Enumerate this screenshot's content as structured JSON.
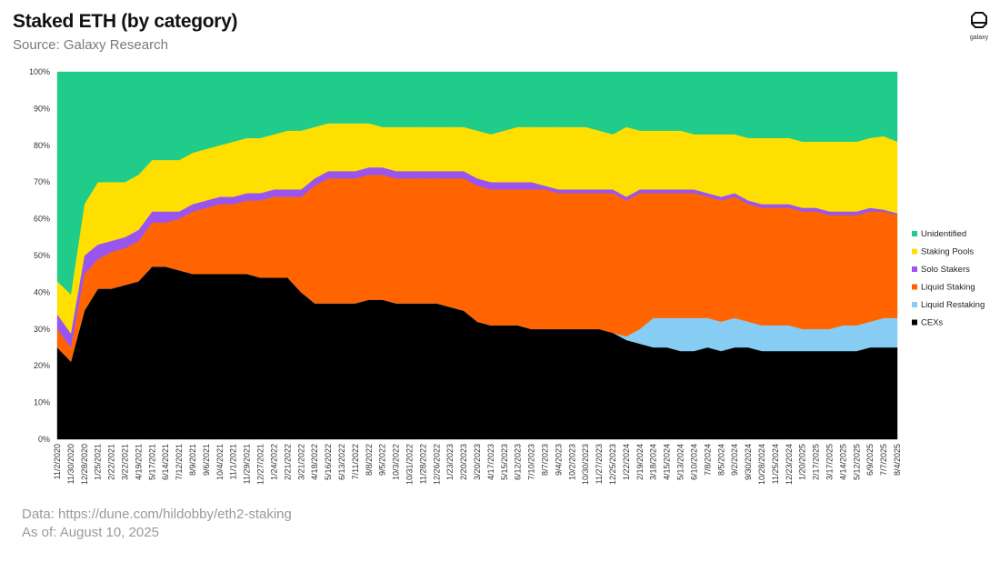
{
  "header": {
    "title": "Staked ETH (by category)",
    "subtitle": "Source: Galaxy Research"
  },
  "logo": {
    "label": "galaxy",
    "icon": "galaxy-logo-icon"
  },
  "footer": {
    "data_source": "Data: https://dune.com/hildobby/eth2-staking",
    "as_of": "As of: August 10, 2025"
  },
  "chart_data": {
    "type": "area",
    "stacked": true,
    "normalized": true,
    "ylim": [
      0,
      100
    ],
    "y_ticks": [
      "0%",
      "10%",
      "20%",
      "30%",
      "40%",
      "50%",
      "60%",
      "70%",
      "80%",
      "90%",
      "100%"
    ],
    "x_tick_labels": [
      "11/2/2020",
      "11/30/2020",
      "12/28/2020",
      "1/25/2021",
      "2/22/2021",
      "3/22/2021",
      "4/19/2021",
      "5/17/2021",
      "6/14/2021",
      "7/12/2021",
      "8/9/2021",
      "9/6/2021",
      "10/4/2021",
      "11/1/2021",
      "11/29/2021",
      "12/27/2021",
      "1/24/2022",
      "2/21/2022",
      "3/21/2022",
      "4/18/2022",
      "5/16/2022",
      "6/13/2022",
      "7/11/2022",
      "8/8/2022",
      "9/5/2022",
      "10/3/2022",
      "10/31/2022",
      "11/28/2022",
      "12/26/2022",
      "1/23/2023",
      "2/20/2023",
      "3/20/2023",
      "4/17/2023",
      "5/15/2023",
      "6/12/2023",
      "7/10/2023",
      "8/7/2023",
      "9/4/2023",
      "10/2/2023",
      "10/30/2023",
      "11/27/2023",
      "12/25/2023",
      "1/22/2024",
      "2/19/2024",
      "3/18/2024",
      "4/15/2024",
      "5/13/2024",
      "6/10/2024",
      "7/8/2024",
      "8/5/2024",
      "9/2/2024",
      "9/30/2024",
      "10/28/2024",
      "11/25/2024",
      "12/23/2024",
      "1/20/2025",
      "2/17/2025",
      "3/17/2025",
      "4/14/2025",
      "5/12/2025",
      "6/9/2025",
      "7/7/2025",
      "8/4/2025"
    ],
    "legend_position": "right",
    "grid": false,
    "x": [
      "11/2/2020",
      "11/30/2020",
      "12/28/2020",
      "1/25/2021",
      "2/22/2021",
      "3/22/2021",
      "4/19/2021",
      "5/17/2021",
      "6/14/2021",
      "7/12/2021",
      "8/9/2021",
      "9/6/2021",
      "10/4/2021",
      "11/1/2021",
      "11/29/2021",
      "12/27/2021",
      "1/24/2022",
      "2/21/2022",
      "3/21/2022",
      "4/18/2022",
      "5/16/2022",
      "6/13/2022",
      "7/11/2022",
      "8/8/2022",
      "9/5/2022",
      "10/3/2022",
      "10/31/2022",
      "11/28/2022",
      "12/26/2022",
      "1/23/2023",
      "2/20/2023",
      "3/20/2023",
      "4/17/2023",
      "5/15/2023",
      "6/12/2023",
      "7/10/2023",
      "8/7/2023",
      "9/4/2023",
      "10/2/2023",
      "10/30/2023",
      "11/27/2023",
      "12/25/2023",
      "1/22/2024",
      "2/19/2024",
      "3/18/2024",
      "4/15/2024",
      "5/13/2024",
      "6/10/2024",
      "7/8/2024",
      "8/5/2024",
      "9/2/2024",
      "9/30/2024",
      "10/28/2024",
      "11/25/2024",
      "12/23/2024",
      "1/20/2025",
      "2/17/2025",
      "3/17/2025",
      "4/14/2025",
      "5/12/2025",
      "6/9/2025",
      "7/7/2025",
      "8/4/2025"
    ],
    "series": [
      {
        "name": "CEXs",
        "color": "#000000",
        "values": [
          25,
          22,
          35,
          41,
          41,
          42,
          43,
          47,
          47,
          46,
          45,
          45,
          45,
          45,
          45,
          44,
          44,
          44,
          40,
          37,
          37,
          37,
          37,
          38,
          38,
          37,
          37,
          37,
          37,
          36,
          35,
          32,
          31,
          31,
          31,
          30,
          30,
          30,
          30,
          30,
          30,
          29,
          27,
          26,
          25,
          25,
          24,
          24,
          25,
          24,
          25,
          25,
          24,
          24,
          24,
          24,
          24,
          24,
          24,
          24,
          25,
          25,
          25
        ]
      },
      {
        "name": "Liquid Restaking",
        "color": "#87ccf2",
        "values": [
          0,
          0,
          0,
          0,
          0,
          0,
          0,
          0,
          0,
          0,
          0,
          0,
          0,
          0,
          0,
          0,
          0,
          0,
          0,
          0,
          0,
          0,
          0,
          0,
          0,
          0,
          0,
          0,
          0,
          0,
          0,
          0,
          0,
          0,
          0,
          0,
          0,
          0,
          0,
          0,
          0,
          0,
          1,
          4,
          8,
          8,
          9,
          9,
          8,
          8,
          8,
          7,
          7,
          7,
          7,
          6,
          6,
          6,
          7,
          7,
          7,
          8,
          8
        ]
      },
      {
        "name": "Liquid Staking",
        "color": "#ff6400",
        "values": [
          5,
          4,
          10,
          8,
          10,
          10,
          11,
          12,
          12,
          14,
          17,
          18,
          19,
          19,
          20,
          21,
          22,
          22,
          26,
          32,
          34,
          34,
          34,
          34,
          34,
          34,
          34,
          34,
          34,
          35,
          36,
          37,
          37,
          37,
          37,
          38,
          38,
          37,
          37,
          37,
          37,
          38,
          37,
          37,
          34,
          34,
          34,
          34,
          33,
          33,
          33,
          32,
          32,
          32,
          32,
          32,
          32,
          31,
          30,
          30,
          30,
          29,
          28
        ]
      },
      {
        "name": "Solo Stakers",
        "color": "#9955ee",
        "values": [
          4,
          4,
          5,
          4,
          3,
          3,
          3,
          3,
          3,
          2,
          2,
          2,
          2,
          2,
          2,
          2,
          2,
          2,
          2,
          2,
          2,
          2,
          2,
          2,
          2,
          2,
          2,
          2,
          2,
          2,
          2,
          2,
          2,
          2,
          2,
          2,
          1,
          1,
          1,
          1,
          1,
          1,
          1,
          1,
          1,
          1,
          1,
          1,
          1,
          1,
          1,
          1,
          1,
          1,
          1,
          1,
          1,
          1,
          1,
          1,
          1,
          0.5,
          0.5
        ]
      },
      {
        "name": "Staking Pools",
        "color": "#ffdf00",
        "values": [
          9,
          11,
          14,
          17,
          16,
          15,
          15,
          14,
          14,
          14,
          14,
          14,
          14,
          15,
          15,
          15,
          15,
          16,
          16,
          14,
          13,
          13,
          13,
          12,
          11,
          12,
          12,
          12,
          12,
          12,
          12,
          13,
          13,
          14,
          15,
          15,
          16,
          17,
          17,
          17,
          16,
          15,
          19,
          16,
          16,
          16,
          16,
          15,
          16,
          17,
          16,
          17,
          18,
          18,
          18,
          18,
          18,
          19,
          19,
          19,
          19,
          20,
          19.5
        ]
      },
      {
        "name": "Unidentified",
        "color": "#1fcc8a",
        "values": [
          57,
          63,
          36,
          30,
          30,
          30,
          28,
          24,
          24,
          24,
          22,
          21,
          20,
          19,
          18,
          18,
          17,
          16,
          16,
          15,
          14,
          14,
          14,
          14,
          15,
          15,
          15,
          15,
          15,
          15,
          15,
          16,
          17,
          16,
          15,
          15,
          15,
          15,
          15,
          15,
          16,
          17,
          15,
          16,
          16,
          16,
          16,
          17,
          17,
          17,
          17,
          18,
          18,
          18,
          18,
          19,
          19,
          19,
          19,
          19,
          18,
          17.5,
          19
        ]
      }
    ]
  }
}
